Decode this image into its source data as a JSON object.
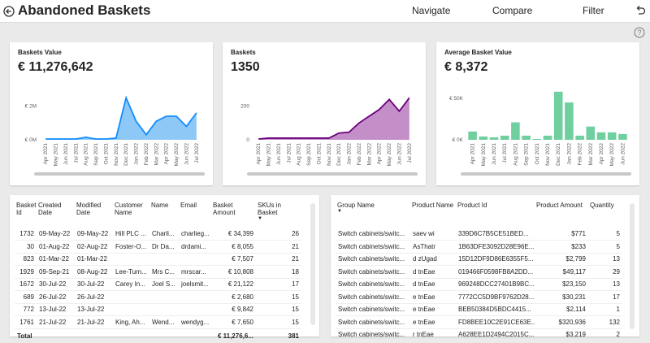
{
  "header": {
    "title": "Abandoned Baskets",
    "nav": [
      "Navigate",
      "Compare",
      "Filter"
    ]
  },
  "cards": [
    {
      "title": "Baskets Value",
      "value": "€ 11,276,642",
      "chart": {
        "type": "area",
        "color": "#118dff",
        "fill": "#8ec8f6",
        "categories": [
          "Apr 2021",
          "May 2021",
          "Jun 2021",
          "Jul 2021",
          "Aug 2021",
          "Sep 2021",
          "Oct 2021",
          "Nov 2021",
          "Dec 2021",
          "Jan 2022",
          "Feb 2022",
          "Mar 2022",
          "Apr 2022",
          "May 2022",
          "Jun 2022",
          "Jul 2022"
        ],
        "values": [
          50000,
          50000,
          50000,
          50000,
          150000,
          50000,
          50000,
          100000,
          2500000,
          1100000,
          300000,
          1100000,
          1400000,
          1400000,
          800000,
          1600000
        ],
        "ylim": [
          0,
          2900000
        ],
        "yticks": [
          {
            "value": 0,
            "label": "€ 0M"
          },
          {
            "value": 2000000,
            "label": "€ 2M"
          }
        ]
      }
    },
    {
      "title": "Baskets",
      "value": "1350",
      "chart": {
        "type": "area",
        "color": "#6b007b",
        "fill": "#c48fc8",
        "categories": [
          "Apr 2021",
          "May 2021",
          "Jun 2021",
          "Jul 2021",
          "Aug 2021",
          "Sep 2021",
          "Oct 2021",
          "Nov 2021",
          "Dec 2021",
          "Jan 2022",
          "Feb 2022",
          "Mar 2022",
          "Apr 2022",
          "May 2022",
          "Jun 2022",
          "Jul 2022"
        ],
        "values": [
          5,
          10,
          10,
          10,
          10,
          10,
          10,
          10,
          40,
          45,
          100,
          140,
          180,
          240,
          170,
          250
        ],
        "ylim": [
          0,
          290
        ],
        "yticks": [
          0,
          200
        ]
      }
    },
    {
      "title": "Average Basket Value",
      "value": "€ 8,372",
      "chart": {
        "type": "bar",
        "color": "#6fcf9f",
        "categories": [
          "Apr 2021",
          "May 2021",
          "Jun 2021",
          "Jul 2021",
          "Aug 2021",
          "Sep 2021",
          "Oct 2021",
          "Nov 2021",
          "Dec 2021",
          "Jan 2022",
          "Feb 2022",
          "Mar 2022",
          "Apr 2022",
          "May 2022",
          "Jun 2022"
        ],
        "values": [
          10000,
          4000,
          3000,
          5000,
          21000,
          5000,
          1000,
          5000,
          58000,
          45000,
          5000,
          16000,
          9000,
          9000,
          7000
        ],
        "ylim": [
          0,
          58800
        ],
        "yticks": [
          {
            "value": 0,
            "label": "€ 0K"
          },
          {
            "value": 50000,
            "label": "€ 50K"
          }
        ]
      }
    }
  ],
  "tables": [
    {
      "columns": [
        "Basket Id",
        "Created Date",
        "Modified Date",
        "Customer Name",
        "Name",
        "Email",
        "Basket Amount",
        "SKUs in Basket"
      ],
      "rows": [
        [
          1732,
          "09-May-22",
          "09-May-22",
          "Hill PLC ...",
          "Charli...",
          "charlieg...",
          "€ 34,399",
          26
        ],
        [
          30,
          "01-Aug-22",
          "02-Aug-22",
          "Foster-O...",
          "Dr Da...",
          "drdami...",
          "€ 8,055",
          21
        ],
        [
          823,
          "01-Mar-22",
          "01-Mar-22",
          null,
          null,
          null,
          "€ 7,507",
          21
        ],
        [
          1929,
          "09-Sep-21",
          "08-Aug-22",
          "Lee-Turn...",
          "Mrs C...",
          "mrscar...",
          "€ 10,808",
          18
        ],
        [
          1672,
          "30-Jul-22",
          "30-Jul-22",
          "Carey In...",
          "Joel S...",
          "joelsmit...",
          "€ 21,122",
          17
        ],
        [
          689,
          "26-Jul-22",
          "26-Jul-22",
          null,
          null,
          null,
          "€ 2,680",
          15
        ],
        [
          772,
          "13-Jul-22",
          "13-Jul-22",
          null,
          null,
          null,
          "€ 9,842",
          15
        ],
        [
          1761,
          "21-Jul-22",
          "21-Jul-22",
          "King, Ah...",
          "Wend...",
          "wendyg...",
          "€ 7,650",
          15
        ]
      ],
      "total": [
        "Total",
        null,
        null,
        null,
        null,
        null,
        "€ 11,276,6...",
        381
      ]
    },
    {
      "columns": [
        "Group Name",
        "Product Name",
        "Product Id",
        "Product Amount",
        "Quantity"
      ],
      "rows": [
        [
          "Switch cabinets/switc...",
          "saev wi",
          "339D6C7B5CE51BED...",
          "$771",
          5
        ],
        [
          "Switch cabinets/switc...",
          "AsThatr",
          "1B63DFE3092D28E96E...",
          "$233",
          5
        ],
        [
          "Switch cabinets/switc...",
          "d zUgad",
          "15D12DF9D86E6355F5...",
          "$2,799",
          13
        ],
        [
          "Switch cabinets/switc...",
          "d tnEae",
          "019466F0598FB8A2DD...",
          "$49,117",
          29
        ],
        [
          "Switch cabinets/switc...",
          "d tnEae",
          "969248DCC27401B9BC...",
          "$23,150",
          13
        ],
        [
          "Switch cabinets/switc...",
          "e tnEae",
          "7772CC5D9BF9762D28...",
          "$30,231",
          17
        ],
        [
          "Switch cabinets/switc...",
          "e tnEae",
          "BEB50384D5BDC4415...",
          "$2,114",
          1
        ],
        [
          "Switch cabinets/switc...",
          "e tnEae",
          "FD8BEE10C2E91CE63E...",
          "$320,936",
          132
        ],
        [
          "Switch cabinets/switc...",
          "r tnEae",
          "A628EE1D2494C2015C...",
          "$3,219",
          2
        ]
      ]
    }
  ]
}
